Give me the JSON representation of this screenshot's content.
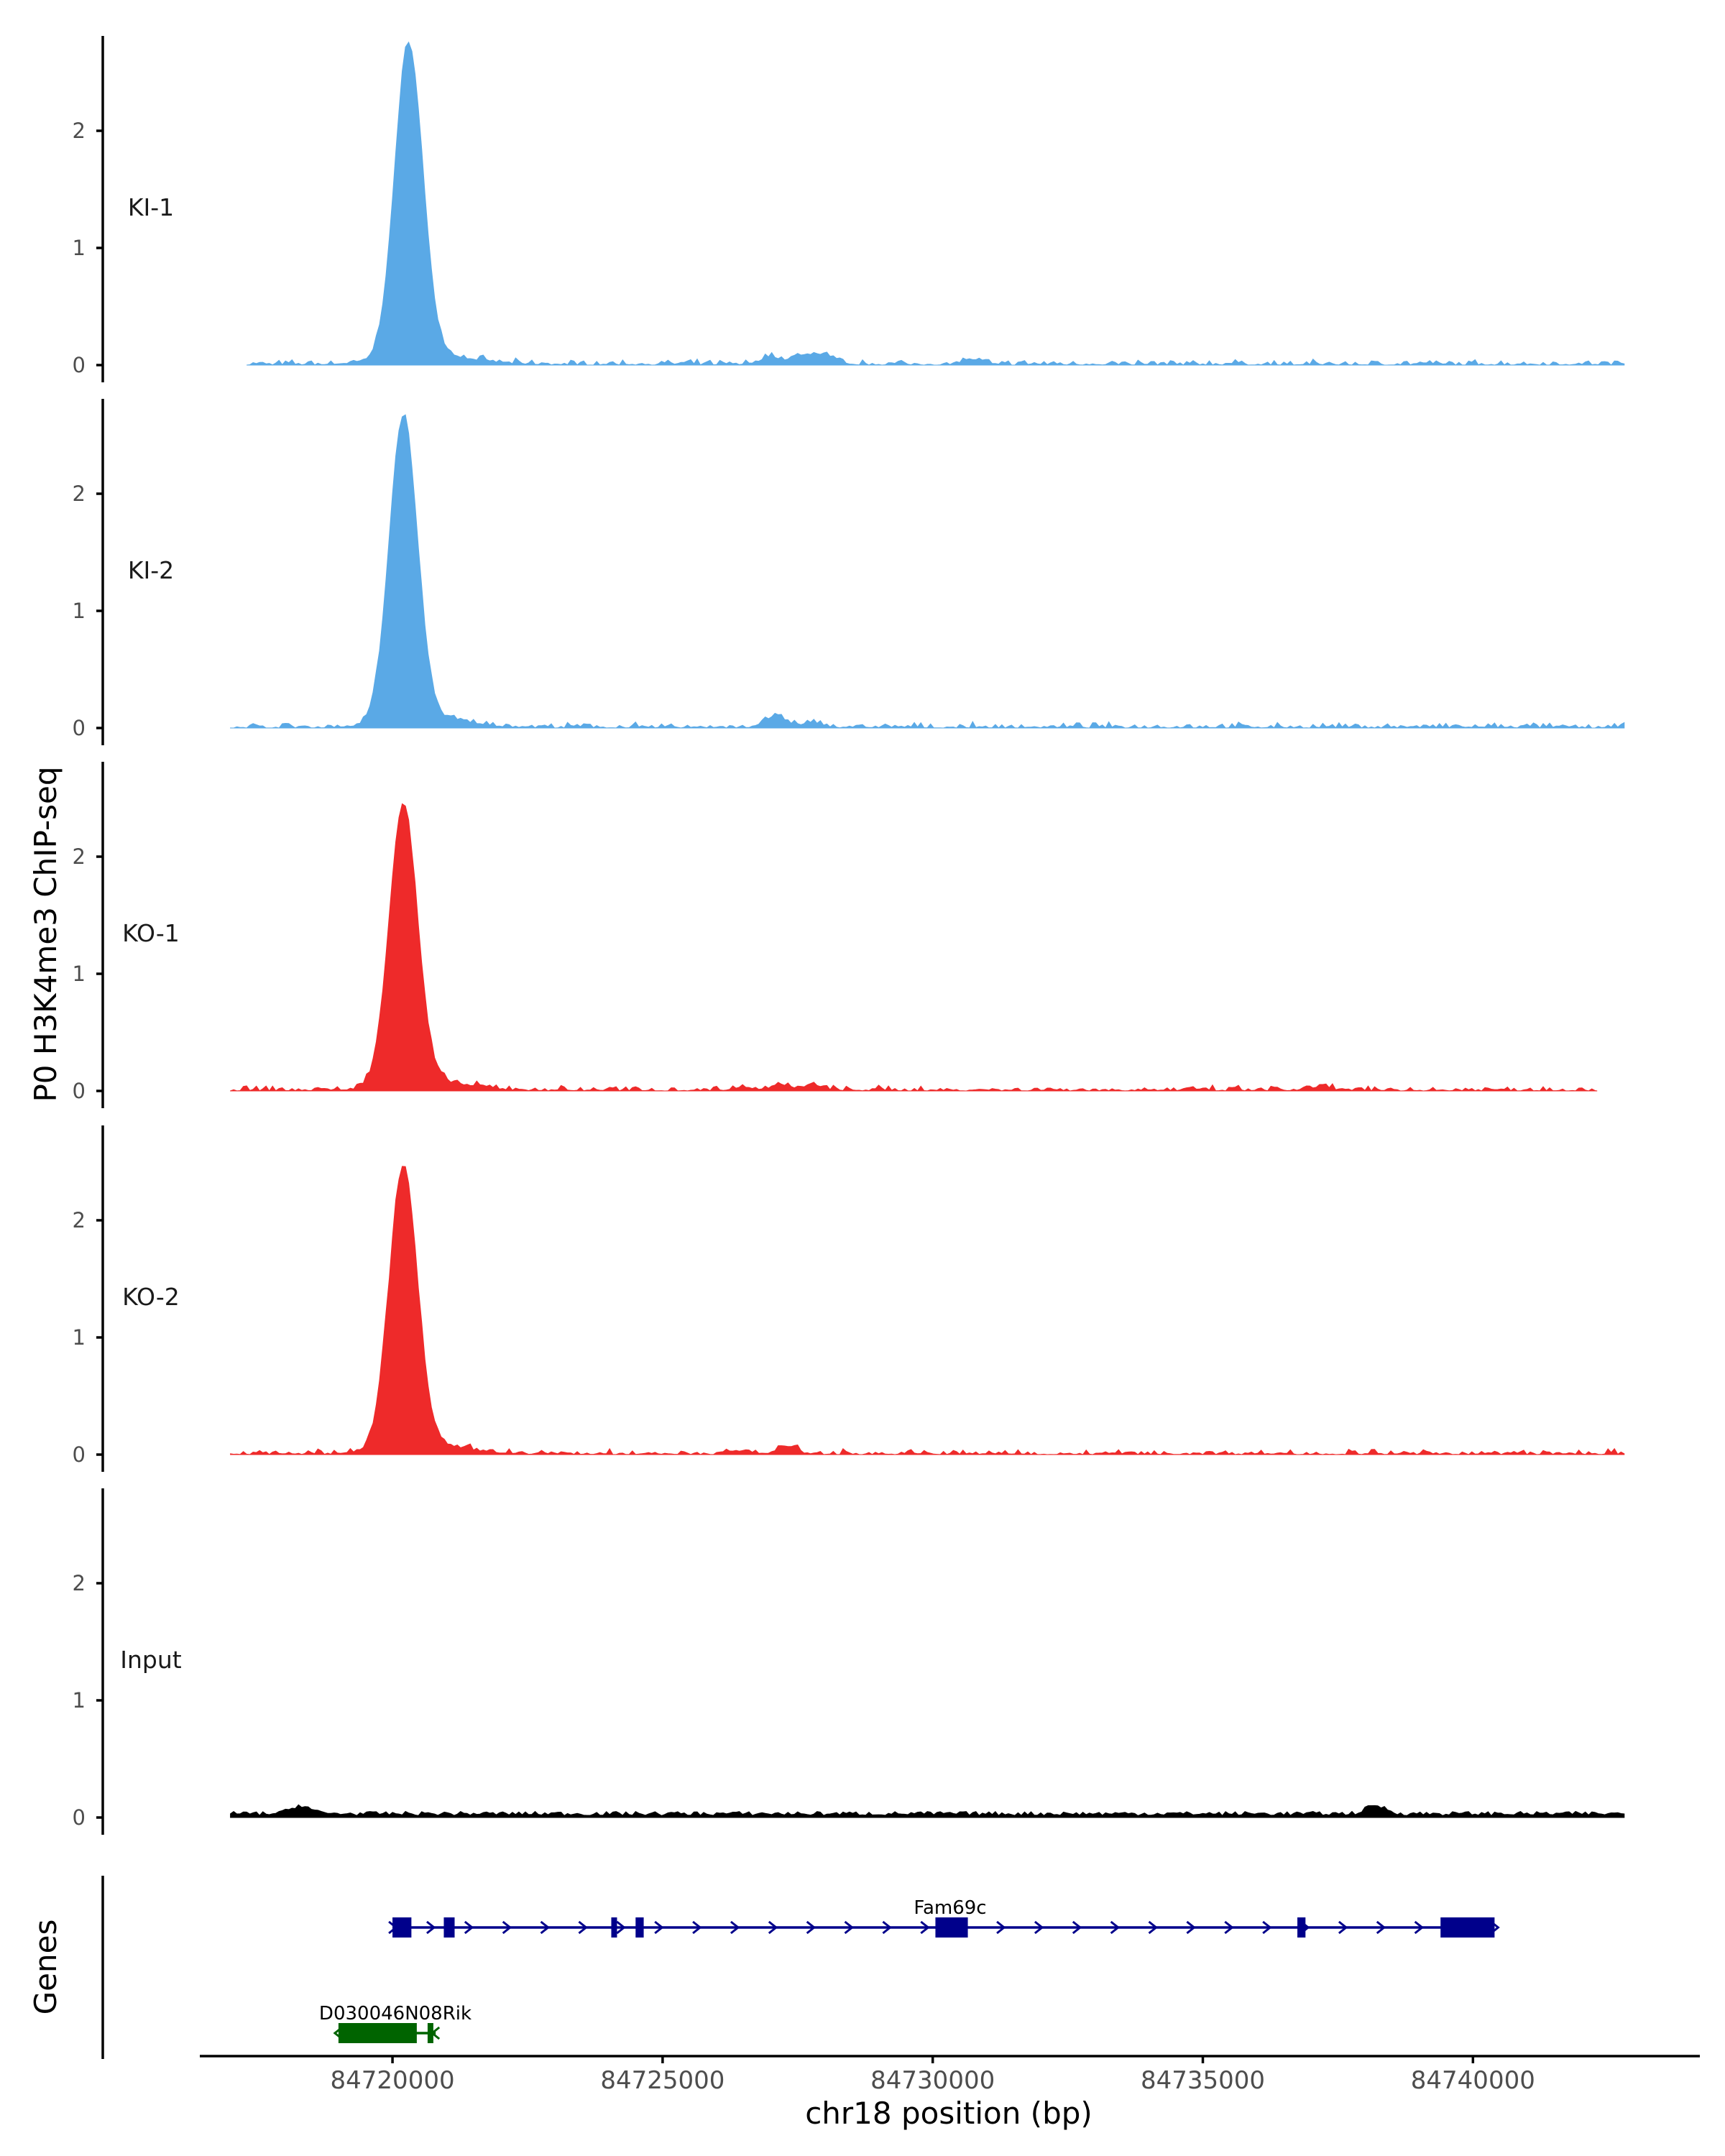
{
  "chart_data": {
    "type": "area",
    "ylabel": "P0 H3K4me3 ChIP-seq",
    "xlabel": "chr18 position (bp)",
    "genes_label": "Genes",
    "x_range": [
      84716500,
      84744200
    ],
    "x_ticks": [
      84720000,
      84725000,
      84730000,
      84735000,
      84740000
    ],
    "x_tick_labels": [
      "84720000",
      "84725000",
      "84730000",
      "84735000",
      "84740000"
    ],
    "y_range": [
      0,
      2.85
    ],
    "y_ticks": [
      0,
      1,
      2
    ],
    "y_tick_labels": [
      "0",
      "1",
      "2"
    ],
    "tracks": [
      {
        "name": "KI-1",
        "color": "#5aa9e6",
        "start": 84717300,
        "end": 84742800,
        "peak": {
          "center": 84720300,
          "height": 2.68,
          "sd": 260
        },
        "secondary": [
          [
            84727000,
            0.07
          ],
          [
            84727600,
            0.08
          ],
          [
            84728000,
            0.08
          ],
          [
            84730700,
            0.04
          ]
        ]
      },
      {
        "name": "KI-2",
        "color": "#5aa9e6",
        "start": 84717000,
        "end": 84742800,
        "peak": {
          "center": 84720200,
          "height": 2.6,
          "sd": 260
        },
        "secondary": [
          [
            84727100,
            0.1
          ],
          [
            84727800,
            0.04
          ]
        ]
      },
      {
        "name": "KO-1",
        "color": "#ee2a2a",
        "start": 84717000,
        "end": 84742300,
        "peak": {
          "center": 84720200,
          "height": 2.38,
          "sd": 260
        },
        "secondary": [
          [
            84726500,
            0.03
          ],
          [
            84727200,
            0.05
          ],
          [
            84727800,
            0.04
          ],
          [
            84737200,
            0.03
          ]
        ]
      },
      {
        "name": "KO-2",
        "color": "#ee2a2a",
        "start": 84717000,
        "end": 84742800,
        "peak": {
          "center": 84720200,
          "height": 2.4,
          "sd": 260
        },
        "secondary": [
          [
            84727300,
            0.06
          ],
          [
            84726500,
            0.03
          ]
        ]
      },
      {
        "name": "Input",
        "color": "#000000",
        "start": 84717000,
        "end": 84742800,
        "peak": null,
        "baseline": 0.04,
        "secondary": [
          [
            84718300,
            0.07
          ],
          [
            84738200,
            0.07
          ]
        ]
      }
    ],
    "genes": [
      {
        "name": "Fam69c",
        "color": "#00008b",
        "strand": "+",
        "start": 84720000,
        "end": 84740400,
        "exons": [
          [
            84720000,
            84720350
          ],
          [
            84720950,
            84721150
          ],
          [
            84724050,
            84724120
          ],
          [
            84724500,
            84724650
          ],
          [
            84730050,
            84730650
          ],
          [
            84736750,
            84736900
          ],
          [
            84739400,
            84740400
          ]
        ]
      },
      {
        "name": "D030046N08Rik",
        "color": "#006400",
        "strand": "-",
        "start": 84719000,
        "end": 84720800,
        "exons": [
          [
            84719000,
            84720450
          ],
          [
            84720650,
            84720720
          ]
        ]
      }
    ]
  }
}
